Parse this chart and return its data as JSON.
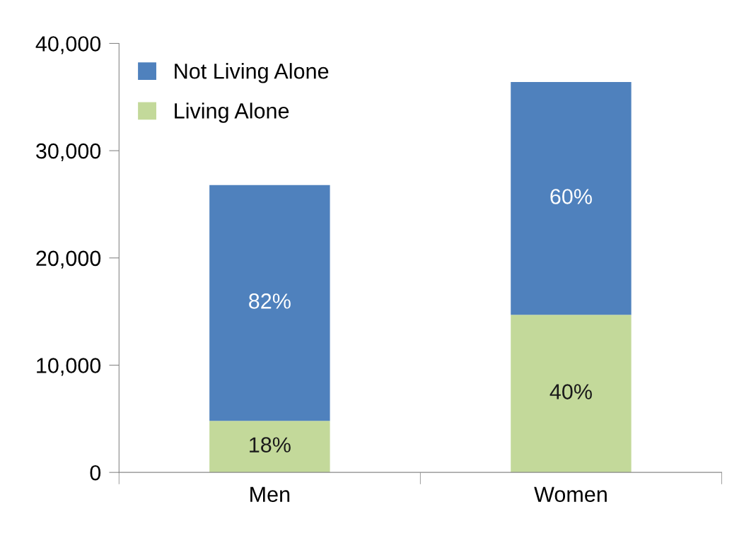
{
  "chart_data": {
    "type": "bar",
    "stacked": true,
    "categories": [
      "Men",
      "Women"
    ],
    "series": [
      {
        "name": "Living Alone",
        "color": "#c3d99a",
        "values": [
          4800,
          14700
        ]
      },
      {
        "name": "Not Living Alone",
        "color": "#4f81bd",
        "values": [
          22000,
          21700
        ]
      }
    ],
    "annotations": [
      "18%",
      "40%",
      "82%",
      "60%"
    ],
    "ylim": [
      0,
      40000
    ],
    "yticks": [
      {
        "value": 0,
        "label": "0"
      },
      {
        "value": 10000,
        "label": "10,000"
      },
      {
        "value": 20000,
        "label": "20,000"
      },
      {
        "value": 30000,
        "label": "30,000"
      },
      {
        "value": 40000,
        "label": "40,000"
      }
    ],
    "grid": false,
    "legend": "top left"
  }
}
